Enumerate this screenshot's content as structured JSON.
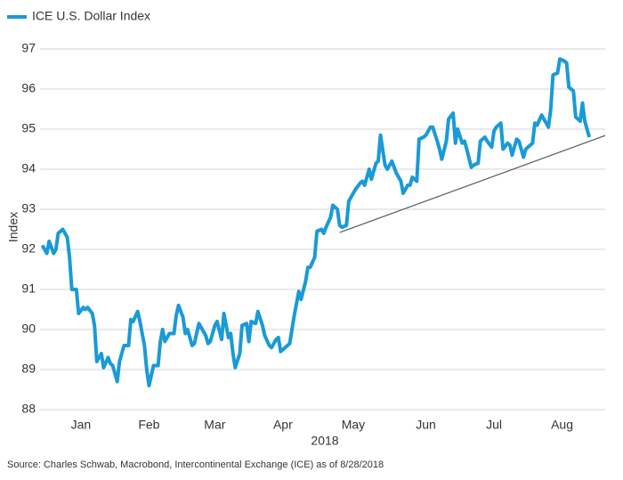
{
  "chart_data": {
    "type": "line",
    "legend": "upper left",
    "ylabel": "Index",
    "xlabel": "2018",
    "source": "Source: Charles Schwab, Macrobond, Intercontinental Exchange (ICE) as of 8/28/2018",
    "xlim": [
      0,
      249
    ],
    "xticks": [
      {
        "value": 18,
        "label": "Jan"
      },
      {
        "value": 48,
        "label": "Feb"
      },
      {
        "value": 77,
        "label": "Mar"
      },
      {
        "value": 107,
        "label": "Apr"
      },
      {
        "value": 138,
        "label": "May"
      },
      {
        "value": 170,
        "label": "Jun"
      },
      {
        "value": 200,
        "label": "Jul"
      },
      {
        "value": 230,
        "label": "Aug"
      }
    ],
    "ylim": [
      88,
      97
    ],
    "yticks": [
      88,
      89,
      90,
      91,
      92,
      93,
      94,
      95,
      96,
      97
    ],
    "grid": true,
    "x": [
      1,
      3,
      4,
      6,
      7,
      8,
      10,
      12,
      13,
      14,
      16,
      17,
      19,
      20,
      21,
      23,
      24,
      25,
      27,
      28,
      30,
      31,
      32,
      34,
      35,
      37,
      39,
      40,
      41,
      43,
      44,
      46,
      47,
      48,
      50,
      52,
      53,
      54,
      55,
      57,
      59,
      60,
      61,
      63,
      64,
      65,
      67,
      68,
      70,
      71,
      73,
      74,
      75,
      77,
      78,
      80,
      81,
      83,
      84,
      85,
      86,
      88,
      89,
      91,
      92,
      93,
      95,
      96,
      98,
      99,
      101,
      102,
      104,
      105,
      106,
      108,
      110,
      111,
      112,
      114,
      115,
      117,
      118,
      119,
      121,
      122,
      124,
      125,
      126,
      128,
      129,
      131,
      132,
      133,
      135,
      136,
      138,
      139,
      141,
      142,
      143,
      145,
      146,
      148,
      149,
      150,
      152,
      153,
      155,
      156,
      157,
      159,
      160,
      162,
      163,
      164,
      166,
      167,
      169,
      170,
      172,
      173,
      175,
      176,
      177,
      179,
      180,
      182,
      183,
      184,
      186,
      187,
      188,
      190,
      191,
      193,
      194,
      196,
      197,
      199,
      200,
      201,
      203,
      204,
      206,
      207,
      208,
      210,
      211,
      213,
      214,
      215,
      217,
      218,
      219,
      221,
      222,
      224,
      225,
      226,
      228,
      229,
      231,
      232,
      233,
      235,
      236,
      238,
      239,
      240,
      242
    ],
    "series": [
      {
        "name": "ICE U.S. Dollar Index",
        "color": "#1a9ad6",
        "values": [
          92.1,
          91.9,
          92.2,
          91.9,
          92.0,
          92.4,
          92.5,
          92.3,
          91.8,
          91.0,
          91.0,
          90.4,
          90.55,
          90.5,
          90.55,
          90.4,
          90.1,
          89.2,
          89.4,
          89.05,
          89.3,
          89.15,
          89.1,
          88.7,
          89.2,
          89.6,
          89.6,
          90.25,
          90.2,
          90.45,
          90.2,
          89.6,
          89.0,
          88.6,
          89.1,
          89.1,
          89.7,
          90.0,
          89.7,
          89.9,
          89.9,
          90.35,
          90.6,
          90.3,
          89.9,
          90.0,
          89.6,
          89.65,
          90.15,
          90.05,
          89.85,
          89.65,
          89.7,
          90.1,
          90.2,
          89.75,
          90.4,
          89.8,
          89.9,
          89.4,
          89.05,
          89.4,
          90.1,
          90.15,
          89.7,
          90.2,
          90.15,
          90.45,
          90.1,
          89.85,
          89.6,
          89.55,
          89.75,
          89.8,
          89.45,
          89.55,
          89.65,
          90.0,
          90.35,
          90.95,
          90.75,
          91.2,
          91.55,
          91.55,
          91.8,
          92.45,
          92.5,
          92.4,
          92.55,
          92.8,
          93.1,
          93.0,
          92.6,
          92.55,
          92.6,
          93.2,
          93.4,
          93.5,
          93.65,
          93.7,
          93.6,
          94.0,
          93.75,
          94.15,
          94.2,
          94.85,
          94.1,
          94.0,
          94.2,
          94.05,
          93.9,
          93.7,
          93.4,
          93.6,
          93.6,
          93.8,
          93.7,
          94.75,
          94.8,
          94.85,
          95.05,
          95.05,
          94.7,
          94.5,
          94.25,
          94.7,
          95.25,
          95.4,
          94.65,
          95.0,
          94.65,
          94.7,
          94.5,
          94.05,
          94.1,
          94.15,
          94.7,
          94.8,
          94.7,
          94.55,
          94.95,
          95.05,
          95.15,
          94.5,
          94.65,
          94.6,
          94.35,
          94.75,
          94.7,
          94.3,
          94.5,
          94.55,
          94.65,
          95.15,
          95.1,
          95.35,
          95.25,
          95.05,
          95.5,
          96.35,
          96.4,
          96.75,
          96.7,
          96.65,
          96.05,
          95.95,
          95.3,
          95.2,
          95.65,
          95.2,
          94.8
        ]
      }
    ],
    "trendline": {
      "color": "#4d5a66",
      "x": [
        132,
        249
      ],
      "values": [
        92.42,
        94.84
      ]
    }
  }
}
